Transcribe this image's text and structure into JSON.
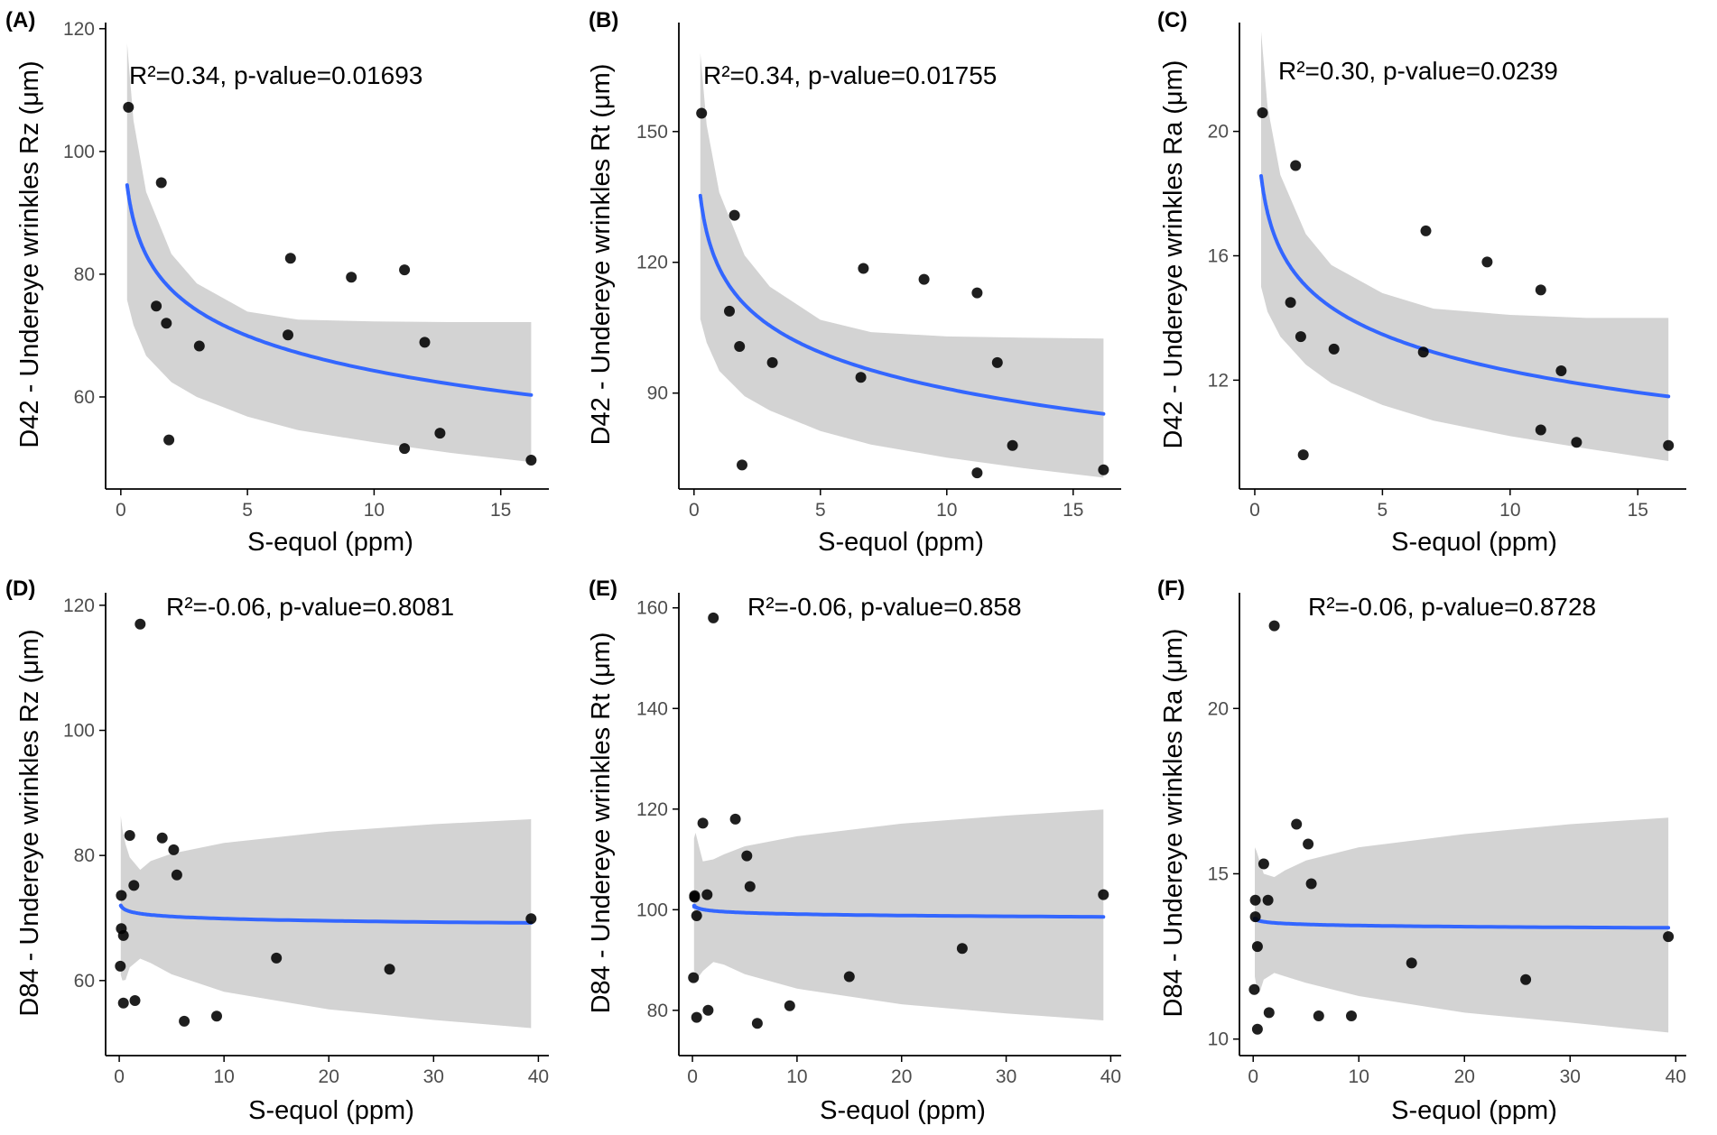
{
  "colors": {
    "point": "#000000",
    "fit_line": "#3366FF",
    "ribbon": "#d3d3d3",
    "axis": "#000000",
    "tick_text": "#4d4d4d"
  },
  "chart_data": [
    {
      "panel": "(A)",
      "type": "scatter",
      "annotation": "R²=0.34, p-value=0.01693",
      "xlabel": "S-equol (ppm)",
      "ylabel": "D42 - Undereye wrinkles Rz (μm)",
      "xlim": [
        -0.6,
        16.9
      ],
      "ylim": [
        45,
        121
      ],
      "xticks": [
        0,
        5,
        10,
        15
      ],
      "yticks": [
        60,
        80,
        100,
        120
      ],
      "grid": false,
      "points": [
        [
          0.3,
          107.2
        ],
        [
          1.6,
          94.9
        ],
        [
          1.4,
          74.8
        ],
        [
          1.8,
          72.0
        ],
        [
          1.9,
          53.0
        ],
        [
          3.1,
          68.3
        ],
        [
          6.7,
          82.6
        ],
        [
          6.6,
          70.1
        ],
        [
          9.1,
          79.5
        ],
        [
          11.2,
          80.7
        ],
        [
          11.2,
          51.6
        ],
        [
          12.0,
          68.9
        ],
        [
          12.6,
          54.1
        ],
        [
          16.2,
          49.7
        ]
      ],
      "fit": {
        "model": "log",
        "a": 83.15,
        "b": -8.2
      },
      "ribbon": {
        "x": [
          0.25,
          0.5,
          1,
          2,
          3,
          5,
          7,
          10,
          13,
          16.2
        ],
        "lower": [
          75.8,
          71.7,
          66.7,
          62.4,
          60.0,
          56.8,
          54.6,
          52.6,
          50.9,
          49.4
        ],
        "upper": [
          117.6,
          105.0,
          93.4,
          83.3,
          78.5,
          73.9,
          72.6,
          72.3,
          72.2,
          72.2
        ]
      }
    },
    {
      "panel": "(B)",
      "type": "scatter",
      "annotation": "R²=0.34, p-value=0.01755",
      "xlabel": "S-equol (ppm)",
      "ylabel": "D42 - Undereye wrinkles Rt (μm)",
      "xlim": [
        -0.6,
        16.9
      ],
      "ylim": [
        68,
        175
      ],
      "xticks": [
        0,
        5,
        10,
        15
      ],
      "yticks": [
        90,
        120,
        150
      ],
      "grid": false,
      "points": [
        [
          0.3,
          154.2
        ],
        [
          1.6,
          130.8
        ],
        [
          1.4,
          108.8
        ],
        [
          1.8,
          100.7
        ],
        [
          1.9,
          73.5
        ],
        [
          3.1,
          97.0
        ],
        [
          6.7,
          118.6
        ],
        [
          6.6,
          93.6
        ],
        [
          9.1,
          116.1
        ],
        [
          11.2,
          113.0
        ],
        [
          11.2,
          71.7
        ],
        [
          12.0,
          97.0
        ],
        [
          12.6,
          78.0
        ],
        [
          16.2,
          72.4
        ]
      ],
      "fit": {
        "model": "log",
        "a": 118.65,
        "b": -12.0
      },
      "ribbon": {
        "x": [
          0.25,
          0.5,
          1,
          2,
          3,
          5,
          7,
          10,
          13,
          16.2
        ],
        "lower": [
          107.0,
          101.6,
          95.1,
          89.3,
          86.0,
          81.3,
          78.2,
          75.2,
          72.8,
          70.6
        ],
        "upper": [
          168.0,
          151.5,
          136.0,
          121.6,
          114.4,
          106.8,
          104.0,
          103.0,
          102.7,
          102.5
        ]
      }
    },
    {
      "panel": "(C)",
      "type": "scatter",
      "annotation": "R²=0.30, p-value=0.0239",
      "xlabel": "S-equol (ppm)",
      "ylabel": "D42 - Undereye wrinkles Ra (μm)",
      "xlim": [
        -0.6,
        16.9
      ],
      "ylim": [
        8.5,
        23.5
      ],
      "xticks": [
        0,
        5,
        10,
        15
      ],
      "yticks": [
        12,
        16,
        20
      ],
      "grid": false,
      "points": [
        [
          0.3,
          20.6
        ],
        [
          1.6,
          18.9
        ],
        [
          1.4,
          14.5
        ],
        [
          1.8,
          13.4
        ],
        [
          1.9,
          9.6
        ],
        [
          3.1,
          13.0
        ],
        [
          6.7,
          16.8
        ],
        [
          6.6,
          12.9
        ],
        [
          9.1,
          15.8
        ],
        [
          11.2,
          14.9
        ],
        [
          11.2,
          10.4
        ],
        [
          12.0,
          12.3
        ],
        [
          12.6,
          10.0
        ],
        [
          16.2,
          9.9
        ]
      ],
      "fit": {
        "model": "log",
        "a": 16.21,
        "b": -1.7
      },
      "ribbon": {
        "x": [
          0.25,
          0.5,
          1,
          2,
          3,
          5,
          7,
          10,
          13,
          16.2
        ],
        "lower": [
          15.0,
          14.2,
          13.4,
          12.5,
          11.9,
          11.2,
          10.7,
          10.2,
          9.8,
          9.4
        ],
        "upper": [
          23.2,
          20.8,
          18.6,
          16.7,
          15.7,
          14.8,
          14.3,
          14.1,
          14.0,
          14.0
        ]
      }
    },
    {
      "panel": "(D)",
      "type": "scatter",
      "annotation": "R²=-0.06, p-value=0.8081",
      "xlabel": "S-equol (ppm)",
      "ylabel": "D84 - Undereye wrinkles Rz (μm)",
      "xlim": [
        -1.3,
        41.0
      ],
      "ylim": [
        48,
        122
      ],
      "xticks": [
        0,
        10,
        20,
        30,
        40
      ],
      "yticks": [
        60,
        80,
        100,
        120
      ],
      "grid": false,
      "points": [
        [
          2.0,
          117.0
        ],
        [
          1.0,
          83.2
        ],
        [
          4.1,
          82.8
        ],
        [
          5.2,
          80.9
        ],
        [
          5.5,
          76.9
        ],
        [
          1.4,
          75.2
        ],
        [
          0.2,
          73.6
        ],
        [
          0.2,
          68.3
        ],
        [
          0.4,
          67.2
        ],
        [
          0.1,
          62.3
        ],
        [
          0.4,
          56.4
        ],
        [
          1.5,
          56.8
        ],
        [
          6.2,
          53.5
        ],
        [
          9.3,
          54.3
        ],
        [
          15.0,
          63.6
        ],
        [
          25.8,
          61.8
        ],
        [
          39.3,
          69.9
        ]
      ],
      "fit": {
        "model": "log",
        "a": 71.05,
        "b": -0.5
      },
      "ribbon": {
        "x": [
          0.15,
          0.3,
          0.6,
          1,
          2,
          3,
          5,
          10,
          20,
          30,
          39.3
        ],
        "lower": [
          60.9,
          60.0,
          60.1,
          62.1,
          63.5,
          62.8,
          61.0,
          58.2,
          55.4,
          53.7,
          52.4
        ],
        "upper": [
          86.3,
          84.2,
          81.8,
          79.7,
          77.7,
          79.1,
          80.3,
          82.0,
          83.8,
          85.0,
          85.8
        ]
      }
    },
    {
      "panel": "(E)",
      "type": "scatter",
      "annotation": "R²=-0.06, p-value=0.858",
      "xlabel": "S-equol (ppm)",
      "ylabel": "D84 - Undereye wrinkles Rt (μm)",
      "xlim": [
        -1.3,
        41.0
      ],
      "ylim": [
        71,
        163
      ],
      "xticks": [
        0,
        10,
        20,
        30,
        40
      ],
      "yticks": [
        80,
        100,
        120,
        140,
        160
      ],
      "grid": false,
      "points": [
        [
          2.0,
          158.0
        ],
        [
          1.0,
          117.2
        ],
        [
          4.1,
          118.0
        ],
        [
          5.2,
          110.7
        ],
        [
          5.5,
          104.6
        ],
        [
          1.4,
          103.0
        ],
        [
          0.2,
          102.8
        ],
        [
          0.2,
          102.5
        ],
        [
          0.4,
          98.8
        ],
        [
          0.1,
          86.5
        ],
        [
          0.4,
          78.6
        ],
        [
          1.5,
          80.0
        ],
        [
          6.2,
          77.4
        ],
        [
          9.3,
          80.9
        ],
        [
          15.0,
          86.7
        ],
        [
          25.8,
          92.3
        ],
        [
          39.3,
          103.0
        ]
      ],
      "fit": {
        "model": "log",
        "a": 100.05,
        "b": -0.4
      },
      "ribbon": {
        "x": [
          0.15,
          0.3,
          0.6,
          1,
          2,
          3,
          5,
          10,
          20,
          30,
          39.3
        ],
        "lower": [
          88.0,
          87.3,
          86.7,
          87.8,
          89.6,
          89.1,
          87.2,
          84.3,
          81.2,
          79.4,
          78.0
        ],
        "upper": [
          114.2,
          115.3,
          112.8,
          109.6,
          110.0,
          111.0,
          112.6,
          114.6,
          117.1,
          118.7,
          119.9
        ]
      }
    },
    {
      "panel": "(F)",
      "type": "scatter",
      "annotation": "R²=-0.06, p-value=0.8728",
      "xlabel": "S-equol (ppm)",
      "ylabel": "D84 - Undereye wrinkles Ra (μm)",
      "xlim": [
        -1.3,
        41.0
      ],
      "ylim": [
        9.5,
        23.5
      ],
      "xticks": [
        0,
        10,
        20,
        30,
        40
      ],
      "yticks": [
        10,
        15,
        20
      ],
      "grid": false,
      "points": [
        [
          2.0,
          22.5
        ],
        [
          1.0,
          15.3
        ],
        [
          4.1,
          16.5
        ],
        [
          5.2,
          15.9
        ],
        [
          5.5,
          14.7
        ],
        [
          1.4,
          14.2
        ],
        [
          0.2,
          14.2
        ],
        [
          0.2,
          13.7
        ],
        [
          0.4,
          12.8
        ],
        [
          0.1,
          11.5
        ],
        [
          0.4,
          10.3
        ],
        [
          1.5,
          10.8
        ],
        [
          6.2,
          10.7
        ],
        [
          9.3,
          10.7
        ],
        [
          15.0,
          12.3
        ],
        [
          25.8,
          11.8
        ],
        [
          39.3,
          13.1
        ]
      ],
      "fit": {
        "model": "log",
        "a": 13.55,
        "b": -0.05
      },
      "ribbon": {
        "x": [
          0.15,
          0.3,
          0.6,
          1,
          2,
          3,
          5,
          10,
          20,
          30,
          39.3
        ],
        "lower": [
          11.9,
          11.6,
          11.4,
          11.8,
          12.0,
          11.9,
          11.7,
          11.3,
          10.8,
          10.5,
          10.2
        ],
        "upper": [
          15.8,
          15.7,
          15.4,
          15.0,
          14.9,
          15.1,
          15.4,
          15.8,
          16.2,
          16.5,
          16.7
        ]
      }
    }
  ]
}
